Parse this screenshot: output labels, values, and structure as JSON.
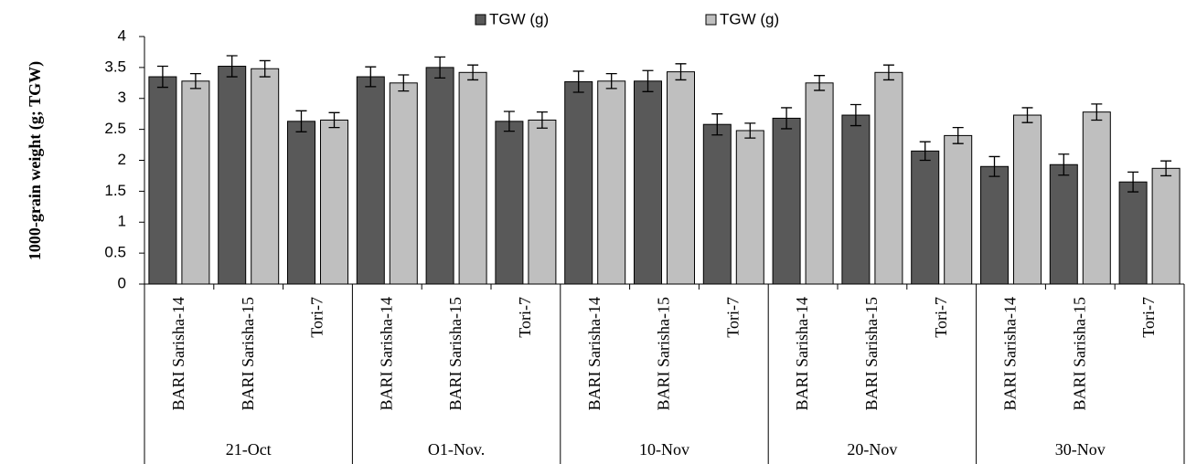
{
  "chart_data": {
    "type": "bar",
    "y_label": "1000-grain weight (g; TGW)",
    "categories": [
      "BARI Sarisha-14",
      "BARI Sarisha-15",
      "Tori-7",
      "BARI Sarisha-14",
      "BARI Sarisha-15",
      "Tori-7",
      "BARI Sarisha-14",
      "BARI Sarisha-15",
      "Tori-7",
      "BARI Sarisha-14",
      "BARI Sarisha-15",
      "Tori-7",
      "BARI Sarisha-14",
      "BARI Sarisha-15",
      "Tori-7"
    ],
    "groups": [
      "21-Oct",
      "O1-Nov.",
      "10-Nov",
      "20-Nov",
      "30-Nov"
    ],
    "series": [
      {
        "name": "TGW (g)",
        "color": "#595959",
        "values": [
          3.35,
          3.52,
          2.63,
          3.35,
          3.5,
          2.63,
          3.27,
          3.28,
          2.58,
          2.68,
          2.73,
          2.15,
          1.9,
          1.93,
          1.65
        ],
        "errors": [
          0.17,
          0.17,
          0.17,
          0.16,
          0.17,
          0.16,
          0.17,
          0.17,
          0.17,
          0.17,
          0.17,
          0.15,
          0.16,
          0.17,
          0.16
        ]
      },
      {
        "name": "TGW (g)",
        "color": "#bfbfbf",
        "values": [
          3.28,
          3.48,
          2.65,
          3.25,
          3.42,
          2.65,
          3.28,
          3.43,
          2.48,
          3.25,
          3.42,
          2.4,
          2.73,
          2.78,
          1.87
        ],
        "errors": [
          0.12,
          0.13,
          0.12,
          0.13,
          0.12,
          0.13,
          0.12,
          0.13,
          0.12,
          0.12,
          0.12,
          0.13,
          0.12,
          0.13,
          0.12
        ]
      }
    ],
    "ylim": [
      0,
      4
    ],
    "yticks": [
      0,
      0.5,
      1,
      1.5,
      2,
      2.5,
      3,
      3.5,
      4
    ],
    "legend": "top"
  }
}
